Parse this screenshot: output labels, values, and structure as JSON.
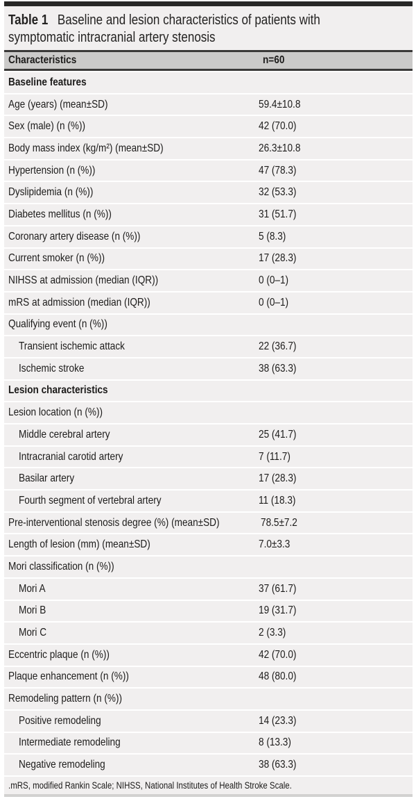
{
  "table": {
    "title_label": "Table 1",
    "title_text": "Baseline and lesion characteristics of patients with symptomatic intracranial artery stenosis",
    "header": {
      "characteristics": "Characteristics",
      "n": "n=60"
    },
    "rows": [
      {
        "type": "section",
        "label": "Baseline features",
        "value": ""
      },
      {
        "type": "row",
        "label": "Age (years) (mean±SD)",
        "value": "59.4±10.8"
      },
      {
        "type": "row",
        "label": "Sex (male) (n (%))",
        "value": "42 (70.0)"
      },
      {
        "type": "row",
        "label": "Body mass index (kg/m²) (mean±SD)",
        "value": "26.3±10.8"
      },
      {
        "type": "row",
        "label": "Hypertension (n (%))",
        "value": "47 (78.3)"
      },
      {
        "type": "row",
        "label": "Dyslipidemia (n (%))",
        "value": "32 (53.3)"
      },
      {
        "type": "row",
        "label": "Diabetes mellitus (n (%))",
        "value": "31 (51.7)"
      },
      {
        "type": "row",
        "label": "Coronary artery disease (n (%))",
        "value": "5 (8.3)"
      },
      {
        "type": "row",
        "label": "Current smoker (n (%))",
        "value": "17 (28.3)"
      },
      {
        "type": "row",
        "label": "NIHSS at admission (median (IQR))",
        "value": "0 (0–1)"
      },
      {
        "type": "row",
        "label": "mRS at admission (median (IQR))",
        "value": "0 (0–1)"
      },
      {
        "type": "row",
        "label": "Qualifying event (n (%))",
        "value": ""
      },
      {
        "type": "sub",
        "label": "Transient ischemic attack",
        "value": "22 (36.7)"
      },
      {
        "type": "sub",
        "label": "Ischemic stroke",
        "value": "38 (63.3)"
      },
      {
        "type": "section",
        "label": "Lesion characteristics",
        "value": ""
      },
      {
        "type": "row",
        "label": "Lesion location (n (%))",
        "value": ""
      },
      {
        "type": "sub",
        "label": "Middle cerebral artery",
        "value": "25 (41.7)"
      },
      {
        "type": "sub",
        "label": "Intracranial carotid artery",
        "value": "7 (11.7)"
      },
      {
        "type": "sub",
        "label": "Basilar artery",
        "value": "17 (28.3)"
      },
      {
        "type": "sub",
        "label": "Fourth segment of vertebral artery",
        "value": "11 (18.3)"
      },
      {
        "type": "row",
        "label": "Pre-interventional stenosis degree (%) (mean±SD)",
        "value": "78.5±7.2"
      },
      {
        "type": "row",
        "label": "Length of lesion (mm) (mean±SD)",
        "value": "7.0±3.3"
      },
      {
        "type": "row",
        "label": "Mori classification (n (%))",
        "value": ""
      },
      {
        "type": "sub",
        "label": "Mori A",
        "value": "37 (61.7)"
      },
      {
        "type": "sub",
        "label": "Mori B",
        "value": "19 (31.7)"
      },
      {
        "type": "sub",
        "label": "Mori C",
        "value": "2 (3.3)"
      },
      {
        "type": "row",
        "label": "Eccentric plaque (n (%))",
        "value": "42 (70.0)"
      },
      {
        "type": "row",
        "label": "Plaque enhancement (n (%))",
        "value": "48 (80.0)"
      },
      {
        "type": "row",
        "label": "Remodeling pattern (n (%))",
        "value": ""
      },
      {
        "type": "sub",
        "label": "Positive remodeling",
        "value": "14 (23.3)"
      },
      {
        "type": "sub",
        "label": "Intermediate remodeling",
        "value": "8 (13.3)"
      },
      {
        "type": "sub",
        "label": "Negative remodeling",
        "value": "38 (63.3)"
      }
    ],
    "footnote": ".mRS, modified Rankin Scale; NIHSS, National Institutes of Health Stroke Scale.",
    "colors": {
      "top_bar": "#282827",
      "rule_dark": "#3a3938",
      "header_bg": "#cbcac9",
      "row_bg": "#f1efef",
      "separator": "#ffffff",
      "bottom_rule": "#d2d1d0",
      "text": "#1c1b1a"
    }
  }
}
